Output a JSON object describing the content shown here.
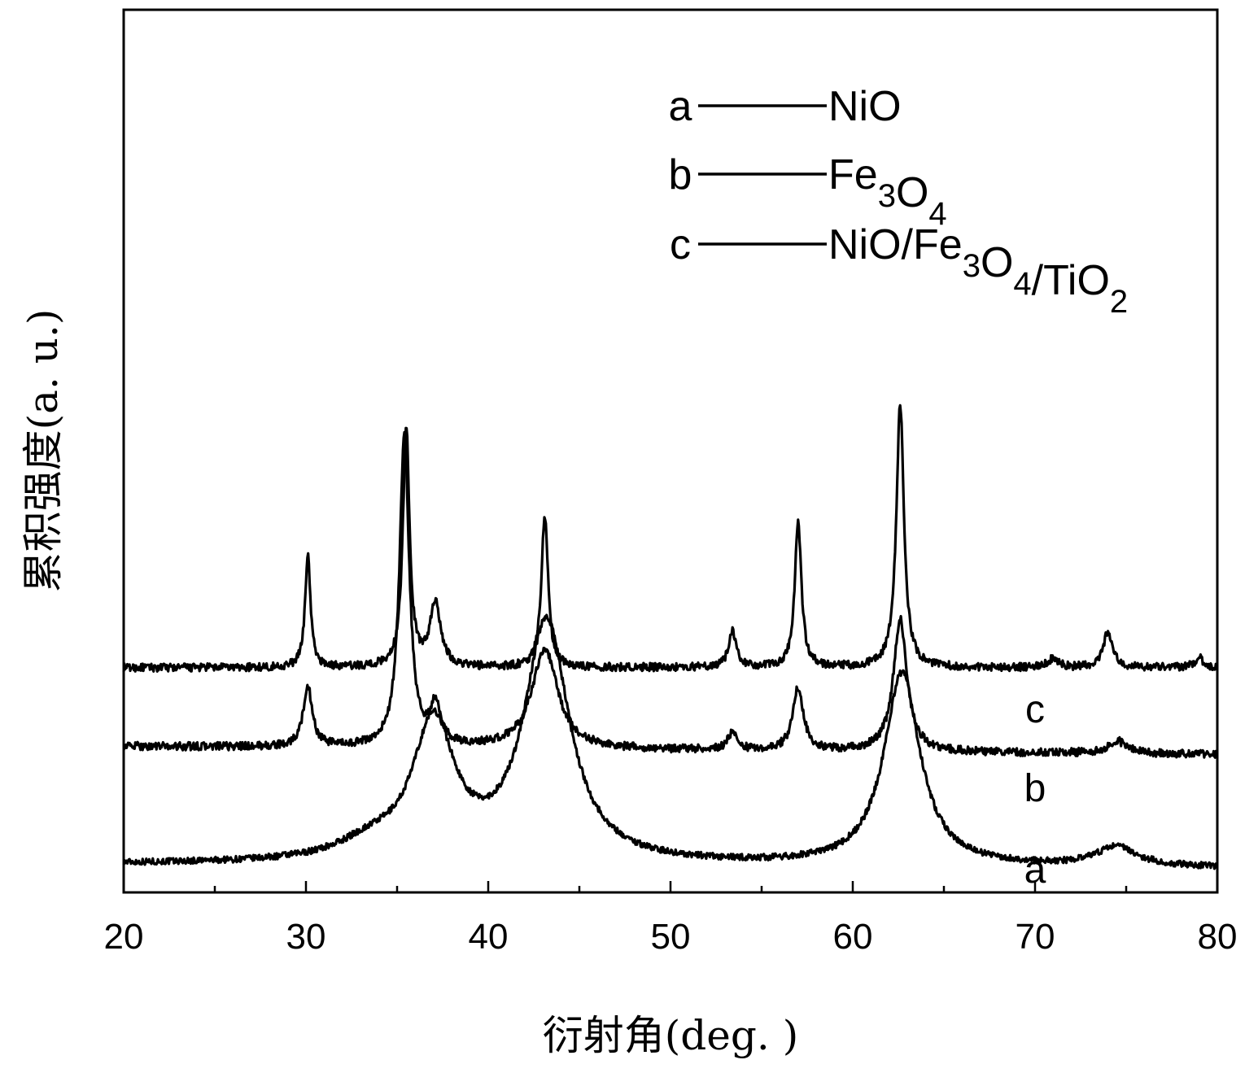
{
  "chart_data": {
    "type": "line",
    "xlabel": "衍射角(deg. )",
    "ylabel": "累积强度(a. u.)",
    "xlim": [
      20,
      80
    ],
    "x_ticks": [
      "20",
      "30",
      "40",
      "50",
      "60",
      "70",
      "80"
    ],
    "grid": false,
    "legend_position": "top-right",
    "legend": [
      {
        "key": "a",
        "label": "NiO"
      },
      {
        "key": "b",
        "label": "Fe3O4",
        "rich": [
          [
            "Fe",
            ""
          ],
          [
            "3",
            "sub"
          ],
          [
            "O",
            ""
          ],
          [
            "4",
            "sub"
          ]
        ]
      },
      {
        "key": "c",
        "label": "NiO/Fe3O4/TiO2",
        "rich": [
          [
            "NiO/Fe",
            ""
          ],
          [
            "3",
            "sub"
          ],
          [
            "O",
            ""
          ],
          [
            "4",
            "sub"
          ],
          [
            "/TiO",
            ""
          ],
          [
            "2",
            "sub"
          ]
        ]
      }
    ],
    "series": [
      {
        "name": "a",
        "baseline": 35,
        "noise": 4,
        "slope": -5,
        "peaks": [
          [
            37.0,
            170,
            1.4
          ],
          [
            43.2,
            300,
            1.5
          ],
          [
            62.7,
            240,
            1.2
          ],
          [
            74.5,
            25,
            1.3
          ],
          [
            33.5,
            20,
            2.2
          ]
        ]
      },
      {
        "name": "b",
        "baseline": 280,
        "noise": 5,
        "slope": 0,
        "peaks": [
          [
            30.1,
            140,
            0.18
          ],
          [
            35.5,
            300,
            0.22
          ],
          [
            37.1,
            80,
            0.35
          ],
          [
            43.1,
            190,
            0.22
          ],
          [
            53.4,
            45,
            0.25
          ],
          [
            57.0,
            180,
            0.22
          ],
          [
            62.6,
            330,
            0.25
          ],
          [
            71.0,
            12,
            0.3
          ],
          [
            74.0,
            45,
            0.3
          ],
          [
            79.0,
            12,
            0.3
          ]
        ]
      },
      {
        "name": "c",
        "baseline": 182,
        "noise": 5,
        "slope": -10,
        "peaks": [
          [
            30.1,
            75,
            0.3
          ],
          [
            35.4,
            390,
            0.32
          ],
          [
            37.1,
            48,
            0.35
          ],
          [
            43.1,
            125,
            0.85
          ],
          [
            53.4,
            22,
            0.3
          ],
          [
            57.0,
            78,
            0.35
          ],
          [
            62.6,
            165,
            0.45
          ],
          [
            74.5,
            16,
            0.6
          ]
        ]
      }
    ],
    "y_plot_max": 1100
  }
}
